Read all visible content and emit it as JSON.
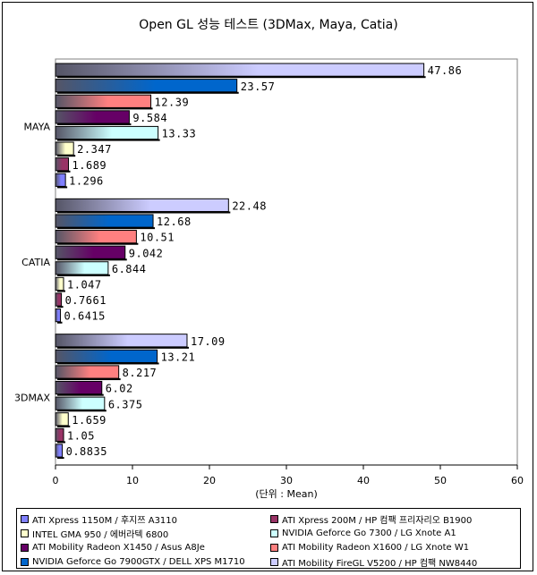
{
  "chart_data": {
    "type": "bar",
    "orientation": "horizontal",
    "title": "Open GL 성능 테스트 (3DMax, Maya, Catia)",
    "xlabel": "(단위 : Mean)",
    "ylabel": "",
    "xlim": [
      0,
      60
    ],
    "xticks": [
      "0",
      "10",
      "20",
      "30",
      "40",
      "50",
      "60"
    ],
    "grid": false,
    "legend_position": "bottom",
    "categories": [
      "MAYA",
      "CATIA",
      "3DMAX"
    ],
    "series": [
      {
        "name": "ATI Xpress 1150M / 후지쯔 A3110",
        "color": "#8080ff",
        "values": [
          1.296,
          0.6415,
          0.8835
        ],
        "labels": [
          "1.296",
          "0.6415",
          "0.8835"
        ]
      },
      {
        "name": "ATI Xpress 200M / HP 컴팩 프리자리오 B1900",
        "color": "#993366",
        "values": [
          1.689,
          0.7661,
          1.05
        ],
        "labels": [
          "1.689",
          "0.7661",
          "1.05"
        ]
      },
      {
        "name": "INTEL GMA 950 / 에버라텍 6800",
        "color": "#ffffcc",
        "values": [
          2.347,
          1.047,
          1.659
        ],
        "labels": [
          "2.347",
          "1.047",
          "1.659"
        ]
      },
      {
        "name": "NVIDIA Geforce Go 7300 / LG Xnote A1",
        "color": "#ccffff",
        "values": [
          13.33,
          6.844,
          6.375
        ],
        "labels": [
          "13.33",
          "6.844",
          "6.375"
        ]
      },
      {
        "name": "ATI Mobility Radeon X1450 / Asus A8Je",
        "color": "#660066",
        "values": [
          9.584,
          9.042,
          6.02
        ],
        "labels": [
          "9.584",
          "9.042",
          "6.02"
        ]
      },
      {
        "name": "ATI Mobility Radeon X1600 / LG Xnote W1",
        "color": "#ff8080",
        "values": [
          12.39,
          10.51,
          8.217
        ],
        "labels": [
          "12.39",
          "10.51",
          "8.217"
        ]
      },
      {
        "name": "NVIDIA Geforce Go 7900GTX / DELL XPS M1710",
        "color": "#0066cc",
        "values": [
          23.57,
          12.68,
          13.21
        ],
        "labels": [
          "23.57",
          "12.68",
          "13.21"
        ]
      },
      {
        "name": "ATI Mobility FireGL V5200 / HP 컴팩 NW8440",
        "color": "#ccccff",
        "values": [
          47.86,
          22.48,
          17.09
        ],
        "labels": [
          "47.86",
          "22.48",
          "17.09"
        ]
      }
    ]
  },
  "legend_order": [
    0,
    1,
    2,
    3,
    4,
    5,
    6,
    7
  ]
}
